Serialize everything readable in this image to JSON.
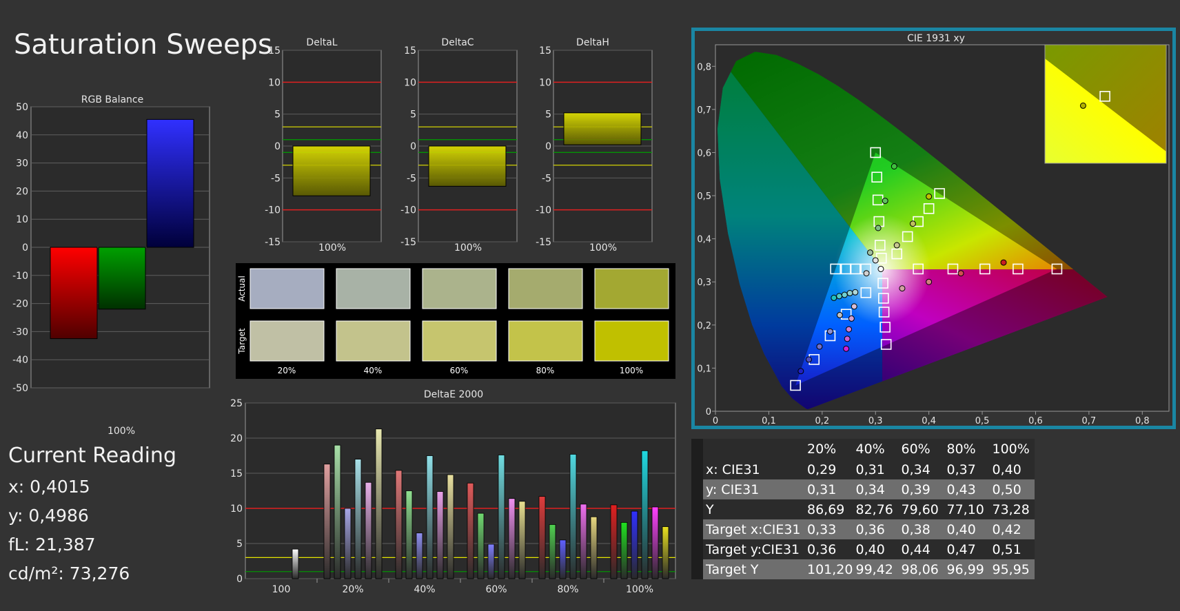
{
  "page": {
    "title": "Saturation Sweeps",
    "reading": {
      "title": "Current Reading",
      "x": "x: 0,4015",
      "y": "y: 0,4986",
      "fl": "fL: 21,387",
      "cdm2": "cd/m²: 73,276"
    }
  },
  "colors": {
    "red": "#ff0000",
    "green": "#00a000",
    "blue": "#0000ff",
    "yellow": "#d4d400",
    "frame": "#1a86a3"
  },
  "chart_data": [
    {
      "id": "rgb",
      "type": "bar",
      "title": "RGB Balance",
      "categories": [
        "100%"
      ],
      "series": [
        {
          "name": "",
          "values": [
            -32.5
          ],
          "color": "#ff0000"
        },
        {
          "name": "",
          "values": [
            -22
          ],
          "color": "#00a000"
        },
        {
          "name": "",
          "values": [
            45.5
          ],
          "color": "#1a1aff"
        }
      ],
      "ylim": [
        -50,
        50
      ],
      "yticks": [
        "50",
        "40",
        "30",
        "20",
        "10",
        "0",
        "-10",
        "-20",
        "-30",
        "-40",
        "-50"
      ],
      "grid": true
    },
    {
      "id": "deltal",
      "type": "bar",
      "title": "DeltaL",
      "categories": [
        "100%"
      ],
      "values": [
        -7.8
      ],
      "ylim": [
        -15,
        15
      ],
      "yticks": [
        "15",
        "10",
        "5",
        "0",
        "-5",
        "-10",
        "-15"
      ],
      "limit_lines": {
        "red": [
          10,
          -10
        ],
        "yellow": [
          3,
          -3
        ],
        "green": [
          1,
          -1
        ]
      }
    },
    {
      "id": "deltac",
      "type": "bar",
      "title": "DeltaC",
      "categories": [
        "100%"
      ],
      "values": [
        -6.3
      ],
      "ylim": [
        -15,
        15
      ],
      "yticks": [
        "15",
        "10",
        "5",
        "0",
        "-5",
        "-10",
        "-15"
      ],
      "limit_lines": {
        "red": [
          10,
          -10
        ],
        "yellow": [
          3,
          -3
        ],
        "green": [
          1,
          -1
        ]
      }
    },
    {
      "id": "deltah",
      "type": "bar",
      "title": "DeltaH",
      "categories": [
        "100%"
      ],
      "values": [
        5.2
      ],
      "base": 0.2,
      "ylim": [
        -15,
        15
      ],
      "yticks": [
        "15",
        "10",
        "5",
        "0",
        "-5",
        "-10",
        "-15"
      ],
      "limit_lines": {
        "red": [
          10,
          -10
        ],
        "yellow": [
          3,
          -3
        ],
        "green": [
          1,
          -1
        ]
      }
    },
    {
      "id": "swatches",
      "type": "table",
      "row_labels": [
        "Actual",
        "Target"
      ],
      "categories": [
        "20%",
        "40%",
        "60%",
        "80%",
        "100%"
      ],
      "actual_colors": [
        "#a6adc0",
        "#a8b2a6",
        "#abb38c",
        "#a5ab6e",
        "#a3a832"
      ],
      "target_colors": [
        "#c0c0a5",
        "#c3c38c",
        "#c6c56e",
        "#c3c34a",
        "#c0c000"
      ]
    },
    {
      "id": "deltae",
      "type": "bar",
      "title": "DeltaE 2000",
      "categories": [
        "100",
        "20%",
        "40%",
        "60%",
        "80%",
        "100%"
      ],
      "ylim": [
        0,
        25
      ],
      "yticks": [
        "25",
        "20",
        "15",
        "10",
        "5",
        "0"
      ],
      "groups": [
        {
          "values": [
            4.2
          ],
          "colors": [
            "#ffffff"
          ]
        },
        {
          "values": [
            16.3,
            19,
            10,
            17,
            13.7,
            21.3
          ],
          "colors": [
            "#e0a0a0",
            "#a8e0a8",
            "#a8a8e8",
            "#a8e0e8",
            "#e8b0e8",
            "#e8e8b0"
          ]
        },
        {
          "values": [
            15.4,
            12.5,
            6.5,
            17.5,
            12.4,
            14.8
          ],
          "colors": [
            "#e07878",
            "#90e090",
            "#9090f0",
            "#90e0e8",
            "#e8a0e8",
            "#e8e0a0"
          ]
        },
        {
          "values": [
            13.6,
            9.3,
            4.9,
            17.6,
            11.4,
            11
          ],
          "colors": [
            "#e05a5a",
            "#70d870",
            "#8080ff",
            "#70dce0",
            "#f090f0",
            "#e8e090"
          ]
        },
        {
          "values": [
            11.7,
            7.7,
            5.5,
            17.7,
            10.6,
            8.8
          ],
          "colors": [
            "#e03c3c",
            "#50d050",
            "#6060ff",
            "#50d8e0",
            "#f070f0",
            "#e8d880"
          ]
        },
        {
          "values": [
            10.5,
            8,
            9.6,
            18.2,
            10.2,
            7.4
          ],
          "colors": [
            "#e02020",
            "#20e020",
            "#3030ff",
            "#20d8e0",
            "#ff40ff",
            "#e8e020"
          ]
        }
      ],
      "limit_lines": {
        "red": 10,
        "yellow": 3,
        "green": 1
      }
    },
    {
      "id": "cie",
      "type": "scatter",
      "title": "CIE 1931 xy",
      "xlim": [
        0,
        0.85
      ],
      "ylim": [
        0,
        0.85
      ],
      "xticks": [
        "0",
        "0,1",
        "0,2",
        "0,3",
        "0,4",
        "0,5",
        "0,6",
        "0,7",
        "0,8"
      ],
      "yticks": [
        "0,8",
        "0,7",
        "0,6",
        "0,5",
        "0,4",
        "0,3",
        "0,2",
        "0,1",
        "0"
      ],
      "gamut_triangle": [
        [
          0.64,
          0.33
        ],
        [
          0.3,
          0.6
        ],
        [
          0.15,
          0.06
        ]
      ],
      "white_point": [
        0.3127,
        0.329
      ],
      "targets": [
        [
          0.64,
          0.33
        ],
        [
          0.567,
          0.33
        ],
        [
          0.505,
          0.33
        ],
        [
          0.445,
          0.33
        ],
        [
          0.38,
          0.33
        ],
        [
          0.3,
          0.6
        ],
        [
          0.3025,
          0.543
        ],
        [
          0.3045,
          0.49
        ],
        [
          0.3065,
          0.44
        ],
        [
          0.3085,
          0.385
        ],
        [
          0.311,
          0.355
        ],
        [
          0.15,
          0.06
        ],
        [
          0.185,
          0.12
        ],
        [
          0.215,
          0.175
        ],
        [
          0.245,
          0.225
        ],
        [
          0.282,
          0.275
        ],
        [
          0.42,
          0.505
        ],
        [
          0.4,
          0.47
        ],
        [
          0.38,
          0.44
        ],
        [
          0.36,
          0.405
        ],
        [
          0.34,
          0.365
        ],
        [
          0.225,
          0.33
        ],
        [
          0.245,
          0.33
        ],
        [
          0.262,
          0.33
        ],
        [
          0.282,
          0.33
        ],
        [
          0.32,
          0.155
        ],
        [
          0.318,
          0.195
        ],
        [
          0.316,
          0.23
        ],
        [
          0.315,
          0.262
        ],
        [
          0.314,
          0.297
        ]
      ],
      "measured": [
        {
          "x": 0.54,
          "y": 0.345,
          "c": "#c82020"
        },
        {
          "x": 0.46,
          "y": 0.32,
          "c": "#d05050"
        },
        {
          "x": 0.4,
          "y": 0.3,
          "c": "#d08080"
        },
        {
          "x": 0.35,
          "y": 0.285,
          "c": "#d0a0a0"
        },
        {
          "x": 0.335,
          "y": 0.568,
          "c": "#40c040"
        },
        {
          "x": 0.318,
          "y": 0.488,
          "c": "#60c060"
        },
        {
          "x": 0.305,
          "y": 0.425,
          "c": "#80c080"
        },
        {
          "x": 0.29,
          "y": 0.368,
          "c": "#a0c0a0"
        },
        {
          "x": 0.16,
          "y": 0.093,
          "c": "#2020c0"
        },
        {
          "x": 0.175,
          "y": 0.12,
          "c": "#5050c0"
        },
        {
          "x": 0.195,
          "y": 0.15,
          "c": "#7070c8"
        },
        {
          "x": 0.215,
          "y": 0.185,
          "c": "#9090d0"
        },
        {
          "x": 0.4,
          "y": 0.498,
          "c": "#c0c000"
        },
        {
          "x": 0.37,
          "y": 0.435,
          "c": "#c0c060"
        },
        {
          "x": 0.34,
          "y": 0.385,
          "c": "#c8c890"
        },
        {
          "x": 0.3,
          "y": 0.35,
          "c": "#e0e0e0"
        },
        {
          "x": 0.222,
          "y": 0.263,
          "c": "#20c0c0"
        },
        {
          "x": 0.232,
          "y": 0.267,
          "c": "#50c8c8"
        },
        {
          "x": 0.242,
          "y": 0.27,
          "c": "#70d0d0"
        },
        {
          "x": 0.252,
          "y": 0.274,
          "c": "#90d0d0"
        },
        {
          "x": 0.262,
          "y": 0.276,
          "c": "#b0d8d8"
        },
        {
          "x": 0.245,
          "y": 0.145,
          "c": "#d020d0"
        },
        {
          "x": 0.247,
          "y": 0.168,
          "c": "#d060d0"
        },
        {
          "x": 0.25,
          "y": 0.19,
          "c": "#d080d0"
        },
        {
          "x": 0.255,
          "y": 0.215,
          "c": "#d0a0d0"
        },
        {
          "x": 0.26,
          "y": 0.243,
          "c": "#d8c0d8"
        },
        {
          "x": 0.233,
          "y": 0.223,
          "c": "#c0c0c0"
        },
        {
          "x": 0.283,
          "y": 0.32,
          "c": "#d0d0d0"
        },
        {
          "x": 0.31,
          "y": 0.33,
          "c": "#ffffff"
        }
      ],
      "inset": {
        "target": [
          0.4195,
          0.5065
        ],
        "measured": [
          0.4015,
          0.4986
        ]
      }
    }
  ],
  "table": {
    "columns": [
      "20%",
      "40%",
      "60%",
      "80%",
      "100%"
    ],
    "rows": [
      {
        "label": "x: CIE31",
        "values": [
          "0,29",
          "0,31",
          "0,34",
          "0,37",
          "0,40"
        ]
      },
      {
        "label": "y: CIE31",
        "values": [
          "0,31",
          "0,34",
          "0,39",
          "0,43",
          "0,50"
        ]
      },
      {
        "label": "Y",
        "values": [
          "86,69",
          "82,76",
          "79,60",
          "77,10",
          "73,28"
        ]
      },
      {
        "label": "Target x:CIE31",
        "values": [
          "0,33",
          "0,36",
          "0,38",
          "0,40",
          "0,42"
        ]
      },
      {
        "label": "Target y:CIE31",
        "values": [
          "0,36",
          "0,40",
          "0,44",
          "0,47",
          "0,51"
        ]
      },
      {
        "label": "Target Y",
        "values": [
          "101,20",
          "99,42",
          "98,06",
          "96,99",
          "95,95"
        ]
      }
    ]
  }
}
